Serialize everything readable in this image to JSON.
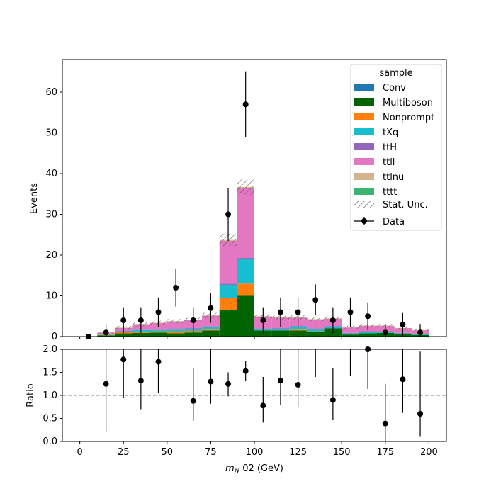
{
  "chart_data": [
    {
      "type": "bar",
      "subtype": "stacked-step-histogram-with-data-points",
      "xlabel": "m",
      "xlabel_sub": "ℓℓ",
      "xlabel_rest": " 02 (GeV)",
      "ylabel": "Events",
      "xlim": [
        -10,
        210
      ],
      "ylim": [
        0,
        68
      ],
      "xticks": [
        0,
        25,
        50,
        75,
        100,
        125,
        150,
        175,
        200
      ],
      "yticks": [
        0,
        10,
        20,
        30,
        40,
        50,
        60
      ],
      "bin_edges": [
        0,
        10,
        20,
        30,
        40,
        50,
        60,
        70,
        80,
        90,
        100,
        110,
        120,
        130,
        140,
        150,
        160,
        170,
        180,
        190,
        200
      ],
      "legend": {
        "title": "sample",
        "placement": "top-right",
        "stat_unc_label": "Stat. Unc.",
        "data_label": "Data"
      },
      "series": [
        {
          "name": "Conv",
          "color": "#1f77b4",
          "values": [
            0,
            0,
            0,
            0,
            0,
            0,
            0,
            0,
            0,
            0,
            0,
            0,
            0,
            0,
            0,
            0,
            0,
            0,
            0,
            0
          ]
        },
        {
          "name": "Multiboson",
          "color": "#006400",
          "values": [
            0,
            0.3,
            0.8,
            0.9,
            1.0,
            0.8,
            1.0,
            1.5,
            6.5,
            10.0,
            1.5,
            1.5,
            1.5,
            1.2,
            2.0,
            0.5,
            0.8,
            0.9,
            0.6,
            0.4
          ]
        },
        {
          "name": "Nonprompt",
          "color": "#ff7f0e",
          "values": [
            0,
            0.1,
            0.3,
            0.3,
            0.3,
            0.5,
            0.4,
            0.2,
            3.0,
            3.0,
            0,
            0,
            0.2,
            0.1,
            0,
            0,
            0,
            0,
            0,
            0
          ]
        },
        {
          "name": "tXq",
          "color": "#17becf",
          "values": [
            0,
            0.1,
            0.2,
            0.4,
            0.3,
            0.4,
            0.5,
            0.7,
            3.2,
            6.0,
            0.3,
            0.4,
            0.8,
            0.5,
            0.5,
            0.3,
            0.4,
            0.3,
            0.2,
            0.2
          ]
        },
        {
          "name": "ttH",
          "color": "#9467bd",
          "values": [
            0,
            0.05,
            0.1,
            0.1,
            0.1,
            0.1,
            0.1,
            0.1,
            0.3,
            0.3,
            0.1,
            0.1,
            0.1,
            0.1,
            0.1,
            0.1,
            0.1,
            0.1,
            0.1,
            0.1
          ]
        },
        {
          "name": "ttll",
          "color": "#e377c2",
          "values": [
            0,
            0.4,
            0.7,
            1.3,
            1.6,
            1.9,
            2.0,
            2.6,
            10.5,
            17.2,
            3.0,
            2.6,
            2.0,
            2.3,
            1.8,
            1.3,
            1.3,
            1.3,
            1.1,
            0.8
          ]
        },
        {
          "name": "ttlnu",
          "color": "#d2b48c",
          "values": [
            0,
            0.05,
            0.1,
            0.1,
            0.1,
            0.1,
            0.1,
            0.1,
            0.2,
            0.2,
            0.1,
            0.1,
            0.1,
            0.1,
            0.1,
            0.1,
            0.1,
            0.1,
            0.1,
            0.1
          ]
        },
        {
          "name": "tttt",
          "color": "#3cb371",
          "values": [
            0,
            0,
            0,
            0,
            0,
            0,
            0,
            0,
            0,
            0,
            0,
            0,
            0,
            0,
            0,
            0,
            0,
            0,
            0,
            0
          ]
        }
      ],
      "stat_unc": [
        0.05,
        0.2,
        0.4,
        0.5,
        0.5,
        0.5,
        0.5,
        0.6,
        1.5,
        1.8,
        0.5,
        0.5,
        0.5,
        0.5,
        0.5,
        0.4,
        0.4,
        0.4,
        0.4,
        0.3
      ],
      "data_points": {
        "x": [
          5,
          15,
          25,
          35,
          45,
          55,
          65,
          75,
          85,
          95,
          105,
          115,
          125,
          135,
          145,
          155,
          165,
          175,
          185,
          195
        ],
        "y": [
          0,
          1,
          4,
          4,
          6,
          12,
          4,
          7,
          30,
          57,
          4,
          6,
          6,
          9,
          4,
          6,
          5,
          1,
          3,
          1
        ],
        "yerr": [
          0,
          2.1,
          3.2,
          3.2,
          3.6,
          4.6,
          3.2,
          3.6,
          6.5,
          8.1,
          3.2,
          3.6,
          3.6,
          3.8,
          3.2,
          3.6,
          3.4,
          2.1,
          2.8,
          2.1
        ]
      }
    },
    {
      "type": "scatter",
      "ylabel": "Ratio",
      "xlim": [
        -10,
        210
      ],
      "ylim": [
        0,
        2.0
      ],
      "yticks": [
        0.0,
        0.5,
        1.0,
        1.5,
        2.0
      ],
      "reference_line": 1.0,
      "points": [
        {
          "x": 15,
          "y": 1.25,
          "lo": 0.22,
          "hi": 2.0
        },
        {
          "x": 25,
          "y": 1.78,
          "lo": 0.95,
          "hi": 2.0
        },
        {
          "x": 35,
          "y": 1.32,
          "lo": 0.7,
          "hi": 2.0
        },
        {
          "x": 45,
          "y": 1.73,
          "lo": 1.05,
          "hi": 2.0
        },
        {
          "x": 65,
          "y": 0.88,
          "lo": 0.45,
          "hi": 1.6
        },
        {
          "x": 75,
          "y": 1.3,
          "lo": 0.82,
          "hi": 2.0
        },
        {
          "x": 85,
          "y": 1.25,
          "lo": 0.98,
          "hi": 1.5
        },
        {
          "x": 95,
          "y": 1.53,
          "lo": 1.32,
          "hi": 1.75
        },
        {
          "x": 105,
          "y": 0.78,
          "lo": 0.41,
          "hi": 1.4
        },
        {
          "x": 115,
          "y": 1.32,
          "lo": 0.8,
          "hi": 2.0
        },
        {
          "x": 125,
          "y": 1.23,
          "lo": 0.74,
          "hi": 2.0
        },
        {
          "x": 135,
          "y": null,
          "lo": 1.4,
          "hi": 2.0
        },
        {
          "x": 145,
          "y": 0.9,
          "lo": 0.46,
          "hi": 1.6
        },
        {
          "x": 155,
          "y": null,
          "lo": 1.43,
          "hi": 2.0
        },
        {
          "x": 165,
          "y": 2.0,
          "lo": 1.14,
          "hi": 2.0
        },
        {
          "x": 175,
          "y": 0.39,
          "lo": 0.0,
          "hi": 1.25
        },
        {
          "x": 185,
          "y": 1.35,
          "lo": 0.62,
          "hi": 2.0
        },
        {
          "x": 195,
          "y": 0.6,
          "lo": 0.1,
          "hi": 1.95
        }
      ]
    }
  ]
}
